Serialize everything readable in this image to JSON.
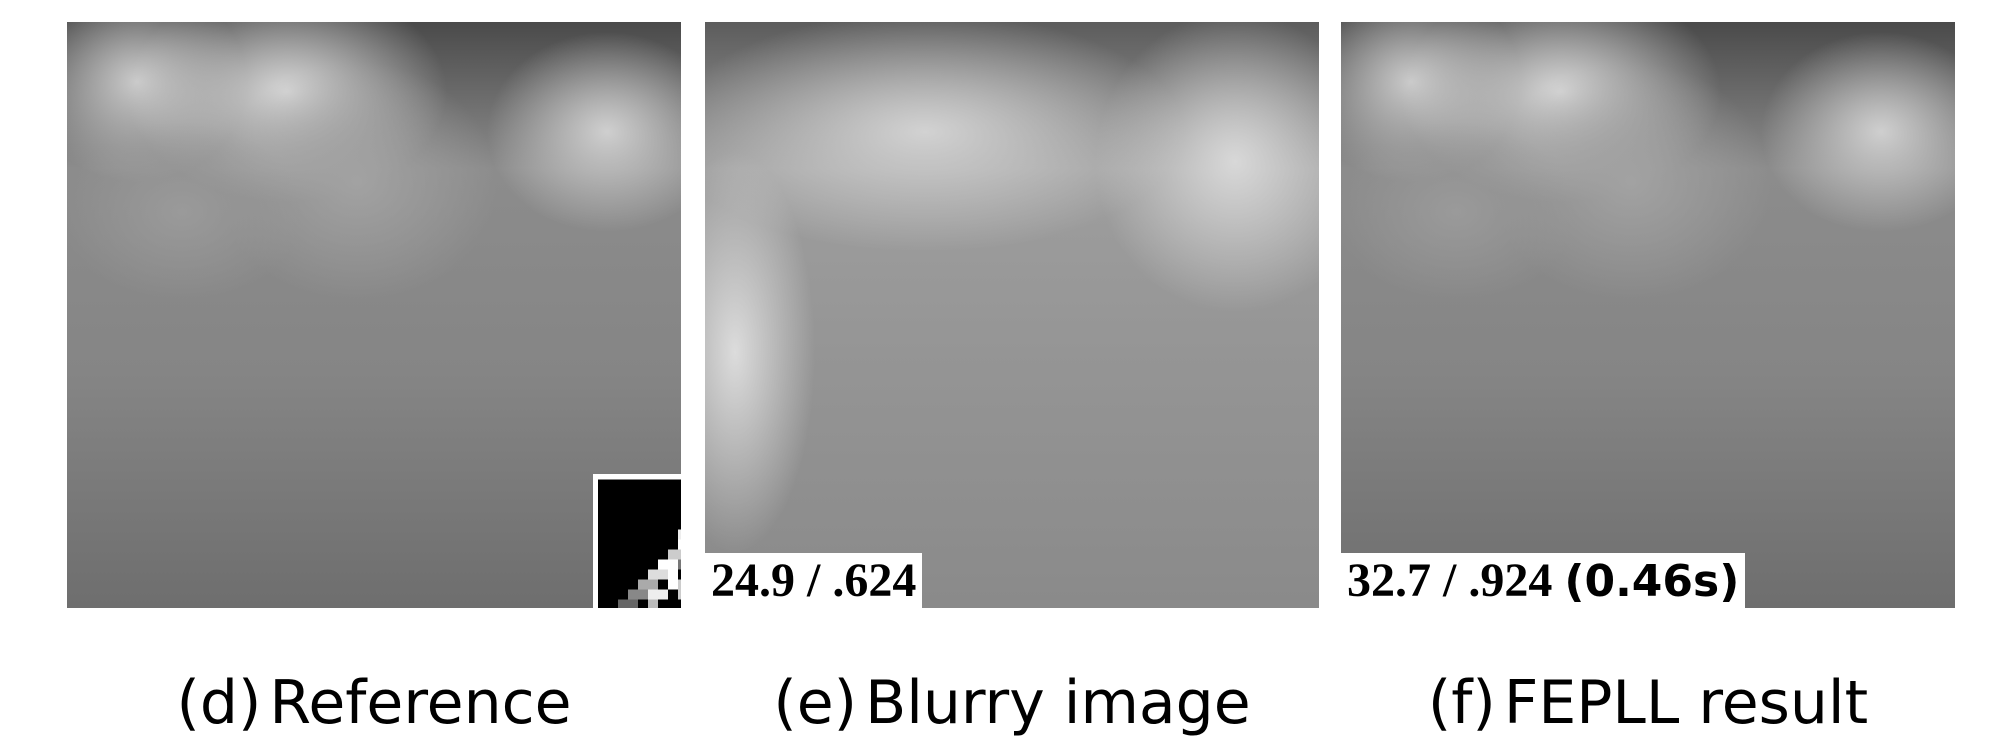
{
  "panels": [
    {
      "label": "(d)",
      "caption": "Reference"
    },
    {
      "label": "(e)",
      "caption": "Blurry image",
      "metric": "24.9 / .624"
    },
    {
      "label": "(f)",
      "caption": "FEPLL result",
      "metric": "32.7 / .924",
      "time": "(0.46s)"
    }
  ]
}
